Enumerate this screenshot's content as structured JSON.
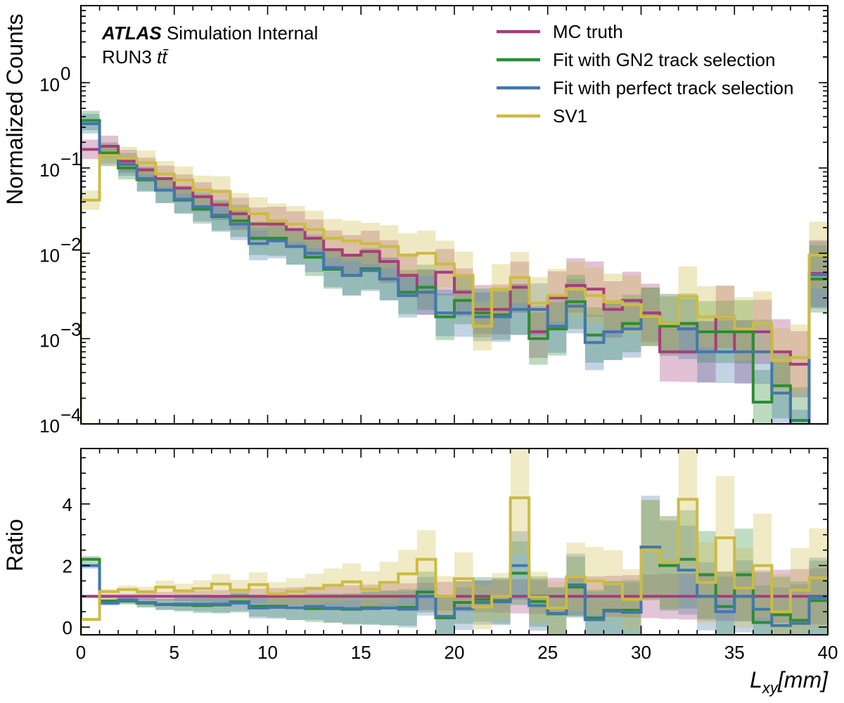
{
  "chart_data": [
    {
      "type": "line",
      "panel": "main",
      "drawstyle": "step-histogram",
      "ylabel": "Normalized Counts",
      "yscale": "log",
      "ylim": [
        0.0001,
        8
      ],
      "xlim": [
        0,
        40
      ],
      "bin_edges": [
        0,
        1,
        2,
        3,
        4,
        5,
        6,
        7,
        8,
        9,
        10,
        11,
        12,
        13,
        14,
        15,
        16,
        17,
        18,
        19,
        20,
        21,
        22,
        23,
        24,
        25,
        26,
        27,
        28,
        29,
        30,
        31,
        32,
        33,
        34,
        35,
        36,
        37,
        38,
        39,
        40
      ],
      "y_ticks": [
        0.0001,
        0.001,
        0.01,
        0.1,
        1
      ],
      "y_tick_labels": [
        {
          "base": "10",
          "exp": "−4"
        },
        {
          "base": "10",
          "exp": "−3"
        },
        {
          "base": "10",
          "exp": "−2"
        },
        {
          "base": "10",
          "exp": "−1"
        },
        {
          "base": "10",
          "exp": "0"
        }
      ],
      "annotations": {
        "experiment": "ATLAS",
        "status": "Simulation Internal",
        "sample_prefix": "RUN3 ",
        "sample_symbol": "tt̄"
      },
      "legend_position": "top-right",
      "series": [
        {
          "name": "MC truth",
          "color": "#a63e7a",
          "values": [
            0.165,
            0.18,
            0.12,
            0.095,
            0.075,
            0.058,
            0.046,
            0.037,
            0.029,
            0.022,
            0.022,
            0.019,
            0.015,
            0.011,
            0.0095,
            0.0105,
            0.008,
            0.0055,
            0.0035,
            0.006,
            0.0035,
            0.0022,
            0.0022,
            0.004,
            0.0012,
            0.003,
            0.0042,
            0.0038,
            0.0022,
            0.0028,
            0.002,
            0.0007,
            0.0007,
            0.0007,
            0.0018,
            0.0007,
            0.0012,
            0.0007,
            0.0005,
            0.0058
          ]
        },
        {
          "name": "Fit with GN2 track selection",
          "color": "#2e8b35",
          "values": [
            0.36,
            0.15,
            0.1,
            0.073,
            0.055,
            0.042,
            0.033,
            0.027,
            0.024,
            0.015,
            0.015,
            0.012,
            0.009,
            0.0065,
            0.0055,
            0.0066,
            0.005,
            0.0035,
            0.004,
            0.0018,
            0.0028,
            0.002,
            0.0019,
            0.0022,
            0.001,
            0.0013,
            0.0027,
            0.0011,
            0.0012,
            0.0015,
            0.0018,
            0.0014,
            0.0015,
            0.0012,
            0.0012,
            0.0012,
            0.00018,
            0.00028,
            0.00011,
            0.005
          ]
        },
        {
          "name": "Fit with perfect track selection",
          "color": "#4477aa",
          "values": [
            0.33,
            0.14,
            0.11,
            0.075,
            0.055,
            0.043,
            0.035,
            0.028,
            0.022,
            0.013,
            0.014,
            0.012,
            0.01,
            0.0068,
            0.0055,
            0.0063,
            0.005,
            0.0032,
            0.0035,
            0.002,
            0.002,
            0.0018,
            0.0018,
            0.0022,
            0.0022,
            0.0014,
            0.0024,
            0.0009,
            0.0012,
            0.0013,
            0.0018,
            0.0015,
            0.0013,
            0.0007,
            0.0007,
            0.0007,
            0.0007,
            0.00023,
            6e-05,
            0.0056
          ]
        },
        {
          "name": "SV1",
          "color": "#ccbb44",
          "values": [
            0.042,
            0.14,
            0.13,
            0.115,
            0.085,
            0.072,
            0.055,
            0.053,
            0.033,
            0.029,
            0.024,
            0.022,
            0.019,
            0.015,
            0.014,
            0.013,
            0.012,
            0.0095,
            0.01,
            0.0075,
            0.0055,
            0.0014,
            0.0038,
            0.0052,
            0.0026,
            0.0032,
            0.0038,
            0.0032,
            0.0027,
            0.0025,
            0.0018,
            0.0015,
            0.0031,
            0.0018,
            0.0018,
            0.0013,
            0.0015,
            0.00055,
            0.0006,
            0.0095
          ]
        }
      ]
    },
    {
      "type": "line",
      "panel": "ratio",
      "drawstyle": "step-histogram",
      "ylabel": "Ratio",
      "xlabel_base": "L",
      "xlabel_sub": "xy",
      "xlabel_unit": "[mm]",
      "ylim": [
        -0.25,
        5.8
      ],
      "xlim": [
        0,
        40
      ],
      "x_ticks": [
        0,
        5,
        10,
        15,
        20,
        25,
        30,
        35,
        40
      ],
      "y_ticks": [
        0,
        2,
        4
      ],
      "series": [
        {
          "name": "MC truth",
          "color": "#a63e7a",
          "values": [
            1,
            1,
            1,
            1,
            1,
            1,
            1,
            1,
            1,
            1,
            1,
            1,
            1,
            1,
            1,
            1,
            1,
            1,
            1,
            1,
            1,
            1,
            1,
            1,
            1,
            1,
            1,
            1,
            1,
            1,
            1,
            1,
            1,
            1,
            1,
            1,
            1,
            1,
            1,
            1
          ]
        },
        {
          "name": "Fit with GN2 track selection",
          "color": "#2e8b35",
          "values": [
            2.2,
            0.85,
            0.85,
            0.78,
            0.74,
            0.72,
            0.7,
            0.72,
            0.82,
            0.68,
            0.68,
            0.63,
            0.6,
            0.6,
            0.58,
            0.63,
            0.62,
            0.64,
            1.14,
            0.3,
            0.8,
            0.9,
            0.86,
            1.75,
            0.83,
            0.43,
            1.3,
            0.3,
            0.55,
            0.55,
            2.5,
            2.0,
            2.2,
            1.7,
            0.67,
            1.7,
            0.15,
            0.4,
            0.22,
            0.86
          ]
        },
        {
          "name": "Fit with perfect track selection",
          "color": "#4477aa",
          "values": [
            2.0,
            0.78,
            0.88,
            0.8,
            0.73,
            0.75,
            0.75,
            0.75,
            0.78,
            0.62,
            0.64,
            0.63,
            0.67,
            0.62,
            0.6,
            0.6,
            0.62,
            0.58,
            1.0,
            0.35,
            0.6,
            0.8,
            0.82,
            2.0,
            0.7,
            0.45,
            1.37,
            0.24,
            0.52,
            0.48,
            2.6,
            2.1,
            1.85,
            1.0,
            0.5,
            1.0,
            0.58,
            0.05,
            0.12,
            0.96
          ]
        },
        {
          "name": "SV1",
          "color": "#ccbb44",
          "values": [
            0.25,
            1.15,
            1.22,
            1.15,
            1.3,
            1.18,
            1.25,
            1.4,
            1.2,
            1.38,
            1.08,
            1.16,
            1.25,
            1.36,
            1.47,
            1.23,
            1.45,
            1.73,
            2.2,
            1.0,
            1.57,
            0.65,
            1.0,
            4.2,
            0.98,
            0.62,
            1.63,
            1.5,
            1.4,
            0.9,
            2.5,
            2.1,
            4.15,
            1.45,
            2.9,
            1.27,
            2.0,
            0.5,
            1.2,
            1.6
          ]
        }
      ]
    }
  ]
}
